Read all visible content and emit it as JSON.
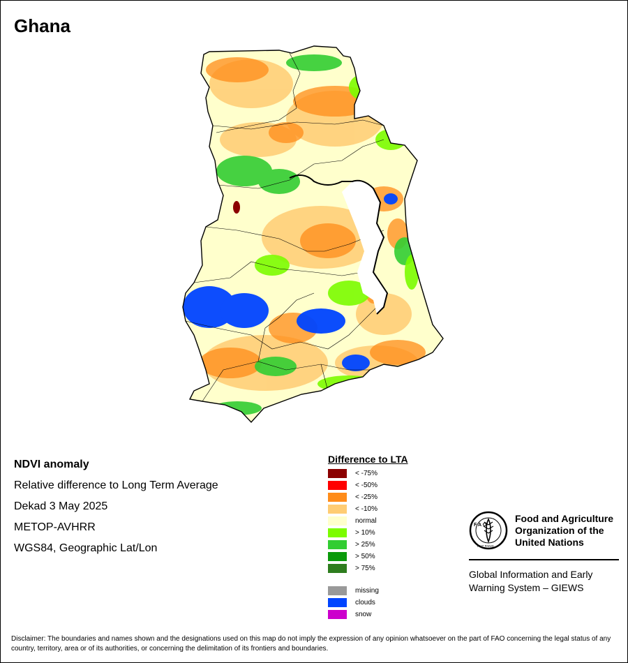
{
  "map": {
    "title": "Ghana",
    "info_lines": [
      "NDVI anomaly",
      "Relative difference to Long Term Average",
      "Dekad 3 May 2025",
      "METOP-AVHRR",
      "WGS84, Geographic Lat/Lon"
    ],
    "dominant_class": "normal"
  },
  "legend": {
    "title": "Difference to LTA",
    "items": [
      {
        "label": "< -75%",
        "color": "#8b0000"
      },
      {
        "label": "< -50%",
        "color": "#ff0000"
      },
      {
        "label": "< -25%",
        "color": "#ff8c1a"
      },
      {
        "label": "< -10%",
        "color": "#ffcc73"
      },
      {
        "label": "normal",
        "color": "#ffffcc"
      },
      {
        "label": "> 10%",
        "color": "#7cfc00"
      },
      {
        "label": "> 25%",
        "color": "#32cd32"
      },
      {
        "label": "> 50%",
        "color": "#0a9a0a"
      },
      {
        "label": "> 75%",
        "color": "#2e7d1e"
      }
    ],
    "extra_items": [
      {
        "label": "missing",
        "color": "#999999"
      },
      {
        "label": "clouds",
        "color": "#0044ff"
      },
      {
        "label": "snow",
        "color": "#cc00cc"
      }
    ]
  },
  "logo": {
    "org_line1": "Food and Agriculture",
    "org_line2": "Organization of the",
    "org_line3": "United Nations",
    "letters": "F A O",
    "motto": "FIAT PANIS",
    "system_line1": "Global Information and Early",
    "system_line2": "Warning System – GIEWS"
  },
  "disclaimer": "Disclaimer: The boundaries and names shown and the designations used on this map do not imply the expression of any opinion whatsoever on the part of FAO concerning the legal status of any country, territory, area or of its authorities, or concerning the delimitation of its frontiers and boundaries."
}
